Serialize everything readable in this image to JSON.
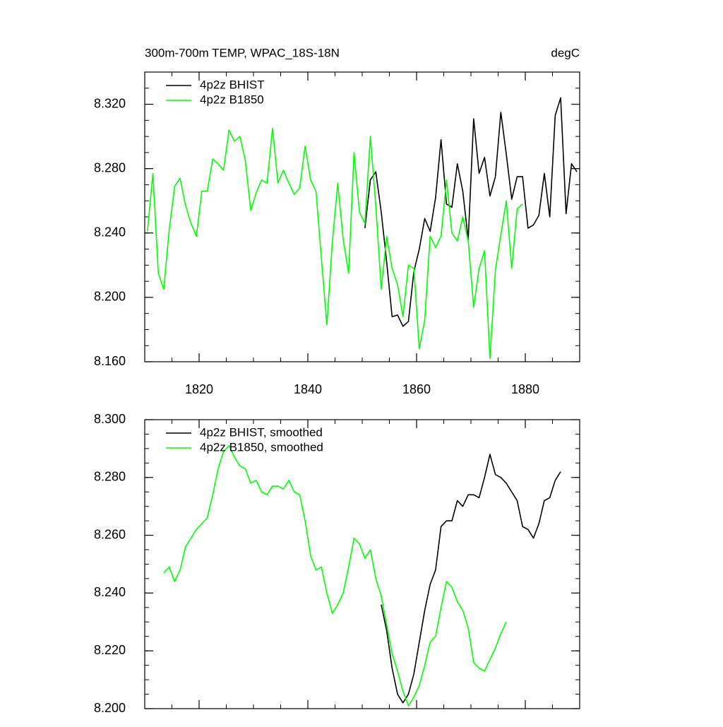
{
  "chart_data": [
    {
      "type": "line",
      "title": "300m-700m TEMP, WPAC_18S-18N",
      "units": "degC",
      "xlim": [
        1810,
        1890
      ],
      "xticks": [
        1820,
        1840,
        1860,
        1880
      ],
      "show_xtick_labels": true,
      "ylim": [
        8.16,
        8.34
      ],
      "yticks": [
        {
          "value": 8.16,
          "label": "8.160"
        },
        {
          "value": 8.2,
          "label": "8.200"
        },
        {
          "value": 8.24,
          "label": "8.240"
        },
        {
          "value": 8.28,
          "label": "8.280"
        },
        {
          "value": 8.32,
          "label": "8.320"
        }
      ],
      "series": [
        {
          "name": "4p2z BHIST",
          "color": "#000000",
          "x": [
            1850.5,
            1851.5,
            1852.5,
            1853.5,
            1854.5,
            1855.5,
            1856.5,
            1857.5,
            1858.5,
            1859.5,
            1860.5,
            1861.5,
            1862.5,
            1863.5,
            1864.5,
            1865.5,
            1866.5,
            1867.5,
            1868.5,
            1869.5,
            1870.5,
            1871.5,
            1872.5,
            1873.5,
            1874.5,
            1875.5,
            1876.5,
            1877.5,
            1878.5,
            1879.5,
            1880.5,
            1881.5,
            1882.5,
            1883.5,
            1884.5,
            1885.5,
            1886.5,
            1887.5,
            1888.5,
            1889.5
          ],
          "values": [
            8.243,
            8.273,
            8.278,
            8.253,
            8.222,
            8.188,
            8.189,
            8.182,
            8.185,
            8.216,
            8.23,
            8.249,
            8.241,
            8.262,
            8.298,
            8.258,
            8.256,
            8.283,
            8.266,
            8.236,
            8.311,
            8.277,
            8.287,
            8.263,
            8.275,
            8.315,
            8.289,
            8.261,
            8.275,
            8.275,
            8.243,
            8.245,
            8.251,
            8.277,
            8.25,
            8.313,
            8.324,
            8.252,
            8.283,
            8.278
          ]
        },
        {
          "name": "4p2z B1850",
          "color": "#00ff00",
          "x": [
            1810.5,
            1811.5,
            1812.5,
            1813.5,
            1814.5,
            1815.5,
            1816.5,
            1817.5,
            1818.5,
            1819.5,
            1820.5,
            1821.5,
            1822.5,
            1823.5,
            1824.5,
            1825.5,
            1826.5,
            1827.5,
            1828.5,
            1829.5,
            1830.5,
            1831.5,
            1832.5,
            1833.5,
            1834.5,
            1835.5,
            1836.5,
            1837.5,
            1838.5,
            1839.5,
            1840.5,
            1841.5,
            1842.5,
            1843.5,
            1844.5,
            1845.5,
            1846.5,
            1847.5,
            1848.5,
            1849.5,
            1850.5,
            1851.5,
            1852.5,
            1853.5,
            1854.5,
            1855.5,
            1856.5,
            1857.5,
            1858.5,
            1859.5,
            1860.5,
            1861.5,
            1862.5,
            1863.5,
            1864.5,
            1865.5,
            1866.5,
            1867.5,
            1868.5,
            1869.5,
            1870.5,
            1871.5,
            1872.5,
            1873.5,
            1874.5,
            1875.5,
            1876.5,
            1877.5,
            1878.5,
            1879.5
          ],
          "values": [
            8.241,
            8.277,
            8.215,
            8.205,
            8.242,
            8.269,
            8.274,
            8.257,
            8.246,
            8.238,
            8.266,
            8.266,
            8.286,
            8.283,
            8.279,
            8.304,
            8.297,
            8.3,
            8.285,
            8.254,
            8.265,
            8.273,
            8.271,
            8.305,
            8.271,
            8.279,
            8.271,
            8.264,
            8.268,
            8.294,
            8.273,
            8.266,
            8.224,
            8.183,
            8.234,
            8.271,
            8.236,
            8.215,
            8.29,
            8.253,
            8.246,
            8.3,
            8.257,
            8.205,
            8.238,
            8.218,
            8.208,
            8.188,
            8.22,
            8.218,
            8.168,
            8.186,
            8.238,
            8.231,
            8.238,
            8.273,
            8.24,
            8.235,
            8.25,
            8.235,
            8.194,
            8.218,
            8.229,
            8.162,
            8.217,
            8.239,
            8.26,
            8.218,
            8.255,
            8.258
          ]
        }
      ]
    },
    {
      "type": "line",
      "xlim": [
        1810,
        1890
      ],
      "xticks": [
        1820,
        1840,
        1860,
        1880
      ],
      "show_xtick_labels": false,
      "ylim": [
        8.2,
        8.3
      ],
      "yticks": [
        {
          "value": 8.2,
          "label": "8.200"
        },
        {
          "value": 8.22,
          "label": "8.220"
        },
        {
          "value": 8.24,
          "label": "8.240"
        },
        {
          "value": 8.26,
          "label": "8.260"
        },
        {
          "value": 8.28,
          "label": "8.280"
        },
        {
          "value": 8.3,
          "label": "8.300"
        }
      ],
      "series": [
        {
          "name": "4p2z BHIST, smoothed",
          "color": "#000000",
          "x": [
            1853.5,
            1854.5,
            1855.5,
            1856.5,
            1857.5,
            1858.5,
            1859.5,
            1860.5,
            1861.5,
            1862.5,
            1863.5,
            1864.5,
            1865.5,
            1866.5,
            1867.5,
            1868.5,
            1869.5,
            1870.5,
            1871.5,
            1872.5,
            1873.5,
            1874.5,
            1875.5,
            1876.5,
            1877.5,
            1878.5,
            1879.5,
            1880.5,
            1881.5,
            1882.5,
            1883.5,
            1884.5,
            1885.5,
            1886.5
          ],
          "values": [
            8.236,
            8.227,
            8.214,
            8.205,
            8.202,
            8.205,
            8.212,
            8.223,
            8.234,
            8.243,
            8.248,
            8.263,
            8.265,
            8.265,
            8.272,
            8.27,
            8.274,
            8.274,
            8.273,
            8.28,
            8.288,
            8.281,
            8.28,
            8.278,
            8.275,
            8.272,
            8.263,
            8.262,
            8.259,
            8.264,
            8.272,
            8.273,
            8.279,
            8.282
          ]
        },
        {
          "name": "4p2z B1850, smoothed",
          "color": "#00ff00",
          "x": [
            1813.5,
            1814.5,
            1815.5,
            1816.5,
            1817.5,
            1818.5,
            1819.5,
            1820.5,
            1821.5,
            1822.5,
            1823.5,
            1824.5,
            1825.5,
            1826.5,
            1827.5,
            1828.5,
            1829.5,
            1830.5,
            1831.5,
            1832.5,
            1833.5,
            1834.5,
            1835.5,
            1836.5,
            1837.5,
            1838.5,
            1839.5,
            1840.5,
            1841.5,
            1842.5,
            1843.5,
            1844.5,
            1845.5,
            1846.5,
            1847.5,
            1848.5,
            1849.5,
            1850.5,
            1851.5,
            1852.5,
            1853.5,
            1854.5,
            1855.5,
            1856.5,
            1857.5,
            1858.5,
            1859.5,
            1860.5,
            1861.5,
            1862.5,
            1863.5,
            1864.5,
            1865.5,
            1866.5,
            1867.5,
            1868.5,
            1869.5,
            1870.5,
            1871.5,
            1872.5,
            1873.5,
            1874.5,
            1875.5,
            1876.5
          ],
          "values": [
            8.247,
            8.249,
            8.244,
            8.248,
            8.256,
            8.259,
            8.262,
            8.264,
            8.266,
            8.274,
            8.283,
            8.289,
            8.291,
            8.287,
            8.284,
            8.283,
            8.278,
            8.279,
            8.275,
            8.274,
            8.277,
            8.277,
            8.276,
            8.279,
            8.275,
            8.274,
            8.265,
            8.253,
            8.248,
            8.249,
            8.24,
            8.233,
            8.236,
            8.24,
            8.249,
            8.259,
            8.257,
            8.252,
            8.255,
            8.245,
            8.239,
            8.229,
            8.219,
            8.213,
            8.206,
            8.201,
            8.204,
            8.208,
            8.215,
            8.223,
            8.225,
            8.235,
            8.244,
            8.242,
            8.237,
            8.234,
            8.228,
            8.216,
            8.214,
            8.213,
            8.217,
            8.221,
            8.226,
            8.23
          ]
        }
      ]
    }
  ]
}
